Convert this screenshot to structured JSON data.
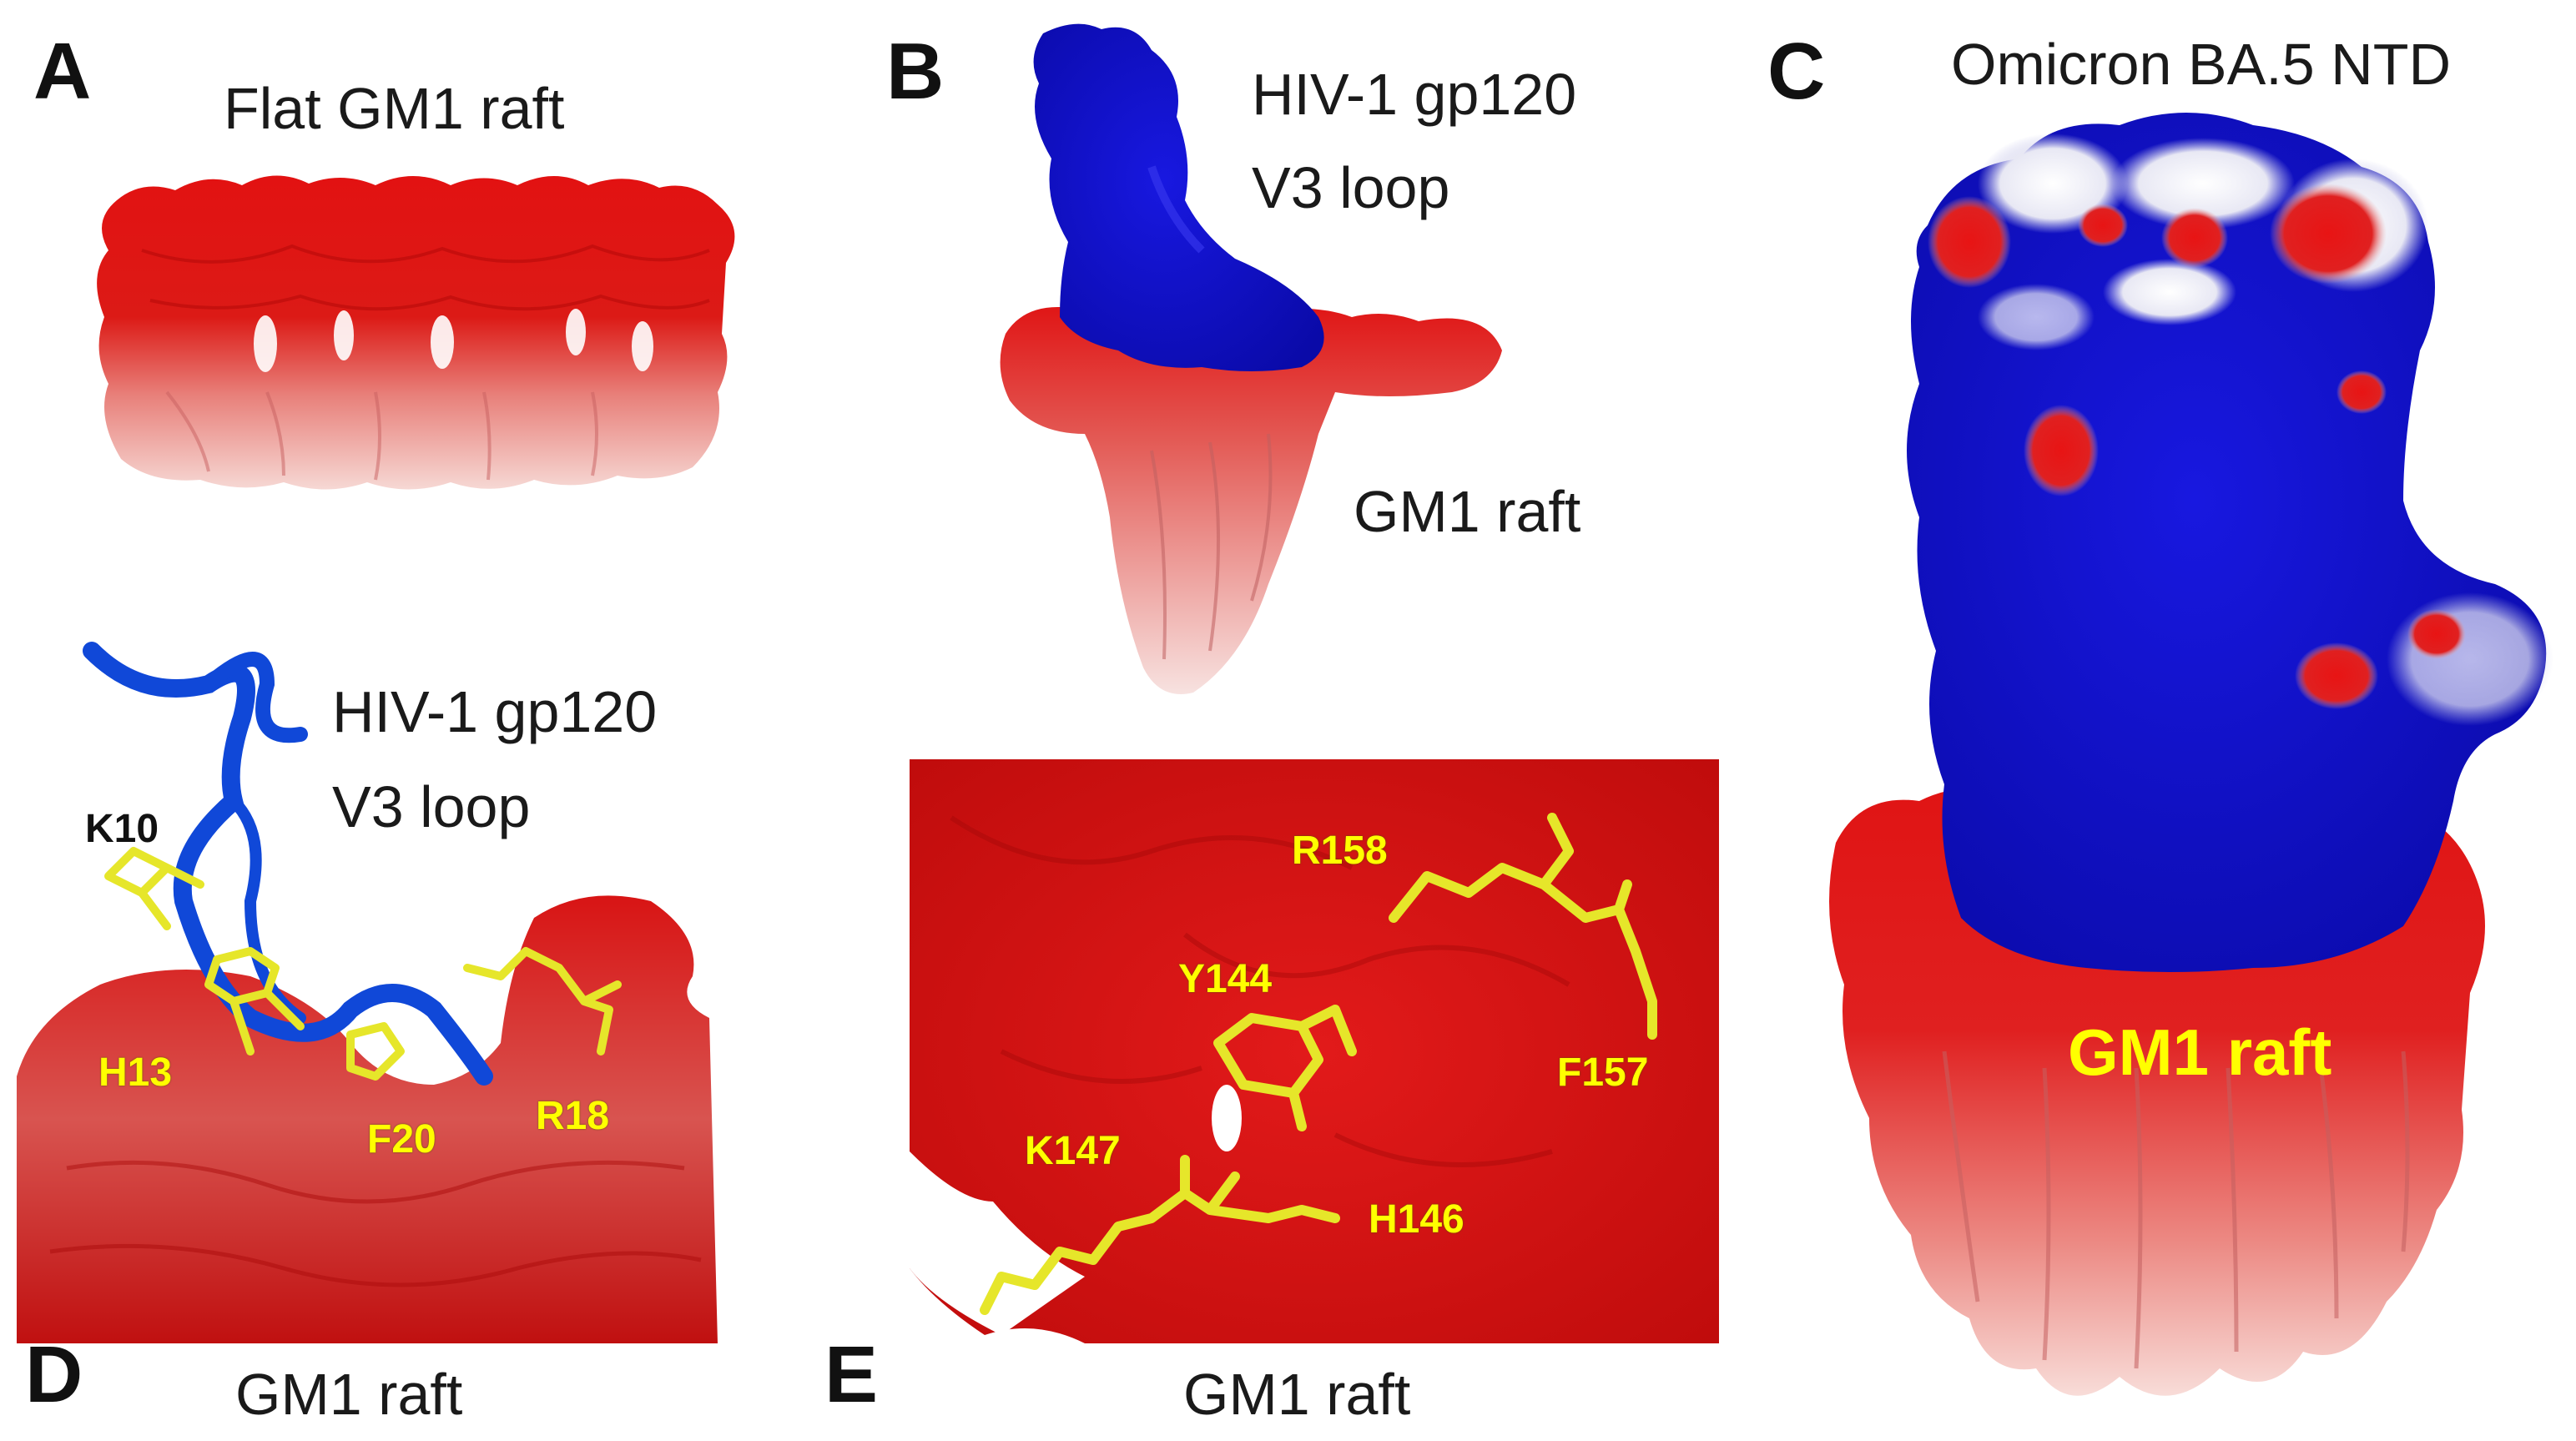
{
  "panels": {
    "a": {
      "letter": "A",
      "caption": "Flat GM1 raft"
    },
    "b": {
      "letter": "B",
      "caption_line1": "HIV-1 gp120",
      "caption_line2": "V3 loop",
      "raft_label": "GM1 raft"
    },
    "c": {
      "letter": "C",
      "caption": "Omicron BA.5 NTD",
      "raft_label": "GM1 raft"
    },
    "d": {
      "letter": "D",
      "caption_line1": "HIV-1 gp120",
      "caption_line2": "V3 loop",
      "raft_label": "GM1 raft",
      "residues": {
        "k10": "K10",
        "h13": "H13",
        "f20": "F20",
        "r18": "R18"
      }
    },
    "e": {
      "letter": "E",
      "raft_label": "GM1 raft",
      "residues": {
        "r158": "R158",
        "y144": "Y144",
        "f157": "F157",
        "k147": "K147",
        "h146": "H146"
      }
    }
  },
  "colors": {
    "raft_red": "#e01010",
    "raft_pale": "#f2c4c0",
    "protein_blue": "#0f10c8",
    "ribbon_blue": "#1048d8",
    "residue_yellow": "#e8e830",
    "neutral_white": "#f4f4f4"
  }
}
